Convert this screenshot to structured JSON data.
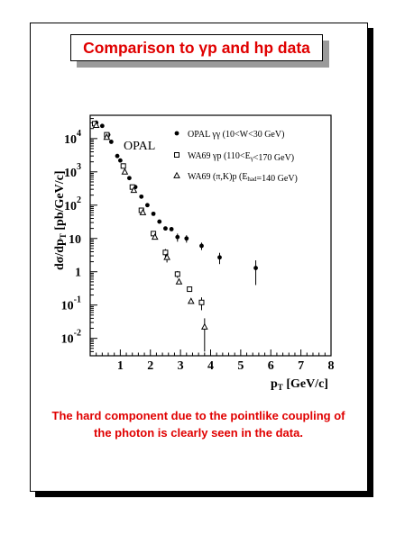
{
  "title": "Comparison to γp and hp data",
  "caption_lines": [
    "The hard component due to the pointlike coupling of",
    "the photon is clearly seen in the data."
  ],
  "colors": {
    "title_text": "#e00000",
    "caption_text": "#e00000"
  },
  "chart_data": {
    "type": "scatter",
    "annotation": "OPAL",
    "xlabel": {
      "base": "p",
      "sub": "T",
      "rest": " [GeV/c]"
    },
    "ylabel": {
      "part1": "dσ/dp",
      "sub": "T",
      "part2": " [pb/GeV/c]"
    },
    "x_ticks": [
      "1",
      "2",
      "3",
      "4",
      "5",
      "6",
      "7",
      "8"
    ],
    "y_ticks": [
      {
        "value": 0.01,
        "base": "10",
        "exp": "-2"
      },
      {
        "value": 0.1,
        "base": "10",
        "exp": "-1"
      },
      {
        "value": 1,
        "base": "1",
        "exp": ""
      },
      {
        "value": 10,
        "base": "10",
        "exp": ""
      },
      {
        "value": 100,
        "base": "10",
        "exp": "2"
      },
      {
        "value": 1000,
        "base": "10",
        "exp": "3"
      },
      {
        "value": 10000,
        "base": "10",
        "exp": "4"
      }
    ],
    "xlim": [
      0,
      8
    ],
    "ylim": [
      0.003,
      50000
    ],
    "yscale": "log",
    "legend_position": "top-right",
    "series": [
      {
        "name": "OPAL γγ (10<W<30 GeV)",
        "marker": "filled-circle",
        "points": [
          [
            0.2,
            30000
          ],
          [
            0.4,
            24000
          ],
          [
            0.6,
            13000
          ],
          [
            0.7,
            8000
          ],
          [
            0.9,
            3000
          ],
          [
            1.0,
            2200
          ],
          [
            1.1,
            1500
          ],
          [
            1.3,
            650
          ],
          [
            1.5,
            350
          ],
          [
            1.7,
            180
          ],
          [
            1.9,
            100
          ],
          [
            2.1,
            55
          ],
          [
            2.3,
            32
          ],
          [
            2.5,
            20
          ],
          [
            2.7,
            19
          ],
          [
            2.9,
            11
          ],
          [
            3.2,
            10
          ],
          [
            3.7,
            6
          ],
          [
            4.3,
            2.7
          ],
          [
            5.5,
            1.3
          ]
        ],
        "errors": [
          0,
          0,
          0,
          0,
          0,
          0,
          0,
          0,
          0,
          0,
          0,
          0,
          0,
          0,
          0,
          3,
          2.5,
          1.5,
          1,
          0.9
        ]
      },
      {
        "name": "WA69 γp (110<E_γ<170 GeV)",
        "marker": "open-square",
        "points": [
          [
            0.15,
            28000
          ],
          [
            0.55,
            13000
          ],
          [
            1.1,
            1500
          ],
          [
            1.4,
            350
          ],
          [
            1.7,
            70
          ],
          [
            2.1,
            14
          ],
          [
            2.5,
            3.8
          ],
          [
            2.9,
            0.85
          ],
          [
            3.3,
            0.3
          ],
          [
            3.7,
            0.12
          ]
        ],
        "errors": [
          0,
          0,
          0,
          0,
          0,
          2,
          1,
          0.2,
          0,
          0.05
        ]
      },
      {
        "name": "WA69 (π,K)p (E_had=140 GeV)",
        "marker": "open-triangle",
        "points": [
          [
            0.2,
            25000
          ],
          [
            0.55,
            11000
          ],
          [
            1.15,
            1000
          ],
          [
            1.45,
            280
          ],
          [
            1.75,
            60
          ],
          [
            2.15,
            11
          ],
          [
            2.55,
            2.7
          ],
          [
            2.95,
            0.5
          ],
          [
            3.35,
            0.13
          ],
          [
            3.8,
            0.022
          ]
        ],
        "errors": [
          0,
          0,
          0,
          0,
          0,
          1.5,
          0.8,
          0,
          0,
          0.018
        ]
      }
    ]
  }
}
